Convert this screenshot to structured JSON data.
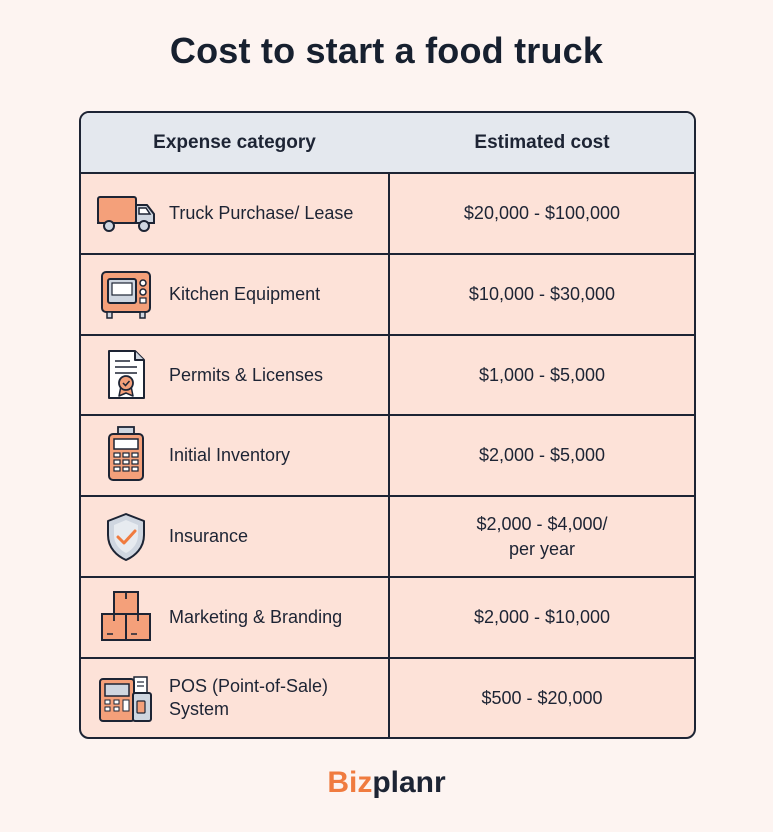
{
  "title": "Cost to start a food truck",
  "header": {
    "col1": "Expense category",
    "col2": "Estimated cost"
  },
  "rows": [
    {
      "icon": "truck-icon",
      "label": "Truck Purchase/ Lease",
      "cost": "$20,000 - $100,000"
    },
    {
      "icon": "oven-icon",
      "label": "Kitchen Equipment",
      "cost": "$10,000 - $30,000"
    },
    {
      "icon": "certificate-icon",
      "label": "Permits & Licenses",
      "cost": "$1,000 - $5,000"
    },
    {
      "icon": "card-terminal-icon",
      "label": "Initial Inventory",
      "cost": "$2,000 - $5,000"
    },
    {
      "icon": "shield-check-icon",
      "label": "Insurance",
      "cost_line1": "$2,000 - $4,000/",
      "cost_line2": "per year"
    },
    {
      "icon": "boxes-icon",
      "label": "Marketing & Branding",
      "cost": "$2,000 - $10,000"
    },
    {
      "icon": "pos-register-icon",
      "label_line1": "POS (Point-of-Sale)",
      "label_line2": "System",
      "cost": "$500 - $20,000"
    }
  ],
  "logo": {
    "part1": "Biz",
    "part2": "planr"
  },
  "colors": {
    "accent": "#f07b3f",
    "row_bg": "#fde2d8",
    "header_bg": "#e4e8ee",
    "ink": "#1d2434"
  }
}
